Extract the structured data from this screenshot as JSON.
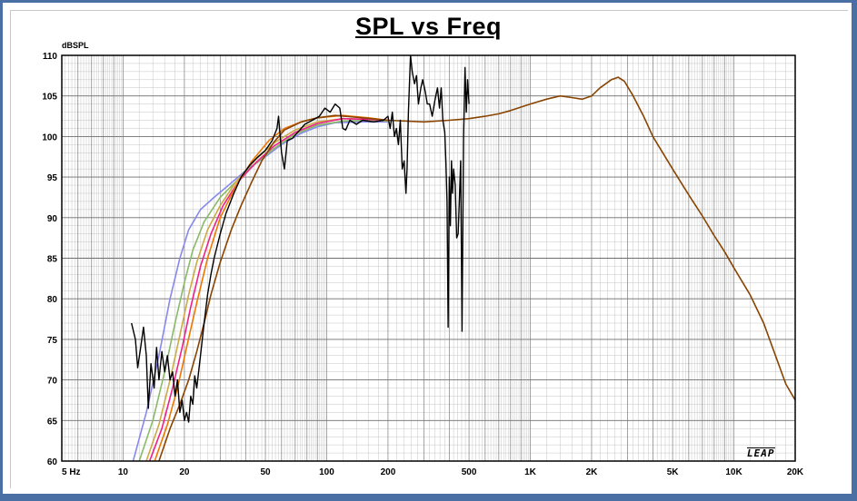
{
  "chart_data": {
    "type": "line",
    "title": "SPL vs Freq",
    "ylabel": "dBSPL",
    "xlabel": "",
    "x_scale": "log",
    "xlim": [
      5,
      20000
    ],
    "ylim": [
      60,
      110
    ],
    "grid": true,
    "y_ticks": [
      "110",
      "105",
      "100",
      "95",
      "90",
      "85",
      "80",
      "75",
      "70",
      "65",
      "60"
    ],
    "x_ticks": [
      {
        "value": 5,
        "label": "5  Hz"
      },
      {
        "value": 10,
        "label": "10"
      },
      {
        "value": 20,
        "label": "20"
      },
      {
        "value": 50,
        "label": "50"
      },
      {
        "value": 100,
        "label": "100"
      },
      {
        "value": 200,
        "label": "200"
      },
      {
        "value": 500,
        "label": "500"
      },
      {
        "value": 1000,
        "label": "1K"
      },
      {
        "value": 2000,
        "label": "2K"
      },
      {
        "value": 5000,
        "label": "5K"
      },
      {
        "value": 10000,
        "label": "10K"
      },
      {
        "value": 20000,
        "label": "20K"
      }
    ],
    "series": [
      {
        "color": "#8888ee",
        "points": [
          [
            11.2,
            60
          ],
          [
            13,
            66
          ],
          [
            15,
            73
          ],
          [
            17,
            80
          ],
          [
            19,
            85
          ],
          [
            21,
            88.5
          ],
          [
            24,
            91
          ],
          [
            28,
            92.5
          ],
          [
            33,
            94
          ],
          [
            40,
            95.8
          ],
          [
            50,
            97.5
          ],
          [
            60,
            99
          ],
          [
            75,
            100.4
          ],
          [
            90,
            101.2
          ],
          [
            110,
            101.7
          ],
          [
            150,
            101.8
          ],
          [
            200,
            101.8
          ]
        ]
      },
      {
        "color": "#88bb66",
        "points": [
          [
            12,
            60
          ],
          [
            14,
            65
          ],
          [
            16,
            71
          ],
          [
            18,
            77
          ],
          [
            20,
            82
          ],
          [
            22,
            86
          ],
          [
            25,
            89.5
          ],
          [
            30,
            92.5
          ],
          [
            36,
            94.5
          ],
          [
            45,
            96.7
          ],
          [
            55,
            98.5
          ],
          [
            70,
            100.3
          ],
          [
            90,
            101.4
          ],
          [
            120,
            101.9
          ],
          [
            160,
            102
          ],
          [
            200,
            101.9
          ]
        ]
      },
      {
        "color": "#ccaa44",
        "points": [
          [
            13,
            60
          ],
          [
            15,
            64.5
          ],
          [
            17,
            70
          ],
          [
            19,
            75.5
          ],
          [
            21,
            80.5
          ],
          [
            23,
            84.5
          ],
          [
            26,
            88.5
          ],
          [
            30,
            91.5
          ],
          [
            36,
            94.5
          ],
          [
            45,
            97.2
          ],
          [
            55,
            99.2
          ],
          [
            70,
            100.8
          ],
          [
            90,
            101.8
          ],
          [
            120,
            102.2
          ],
          [
            160,
            102.1
          ],
          [
            200,
            102
          ]
        ]
      },
      {
        "color": "#ee2288",
        "points": [
          [
            13.5,
            60
          ],
          [
            15.5,
            64
          ],
          [
            17.5,
            69
          ],
          [
            19.5,
            74
          ],
          [
            21.5,
            79
          ],
          [
            24,
            84
          ],
          [
            27,
            88
          ],
          [
            31,
            91.5
          ],
          [
            37,
            94.5
          ],
          [
            45,
            96.8
          ],
          [
            55,
            98.8
          ],
          [
            70,
            100.5
          ],
          [
            90,
            101.6
          ],
          [
            120,
            102.2
          ],
          [
            160,
            102.1
          ],
          [
            200,
            102
          ]
        ]
      },
      {
        "color": "#ee7700",
        "points": [
          [
            14.3,
            60
          ],
          [
            16.5,
            64.5
          ],
          [
            18.5,
            69
          ],
          [
            20.5,
            74
          ],
          [
            23,
            79.5
          ],
          [
            26,
            85
          ],
          [
            30,
            90
          ],
          [
            36,
            94
          ],
          [
            43,
            97
          ],
          [
            52,
            99.5
          ],
          [
            62,
            101
          ],
          [
            75,
            101.8
          ],
          [
            90,
            102.3
          ],
          [
            120,
            102.6
          ],
          [
            160,
            102.3
          ],
          [
            200,
            102
          ]
        ]
      },
      {
        "color": "#884400",
        "points": [
          [
            15,
            60
          ],
          [
            17,
            64
          ],
          [
            19,
            67
          ],
          [
            21,
            70
          ],
          [
            23,
            73.5
          ],
          [
            25,
            77
          ],
          [
            27,
            80.5
          ],
          [
            30,
            84.5
          ],
          [
            34,
            88.5
          ],
          [
            38,
            91.5
          ],
          [
            43,
            94.5
          ],
          [
            48,
            97
          ],
          [
            55,
            99.3
          ],
          [
            62,
            100.8
          ],
          [
            75,
            101.8
          ],
          [
            90,
            102.3
          ],
          [
            110,
            102.6
          ],
          [
            150,
            102.3
          ],
          [
            200,
            102
          ],
          [
            300,
            101.8
          ],
          [
            400,
            102
          ],
          [
            500,
            102.2
          ],
          [
            600,
            102.5
          ],
          [
            700,
            102.8
          ],
          [
            800,
            103.2
          ],
          [
            1000,
            104
          ],
          [
            1200,
            104.6
          ],
          [
            1400,
            105
          ],
          [
            1600,
            104.8
          ],
          [
            1800,
            104.6
          ],
          [
            2000,
            105
          ],
          [
            2200,
            106
          ],
          [
            2500,
            107
          ],
          [
            2700,
            107.3
          ],
          [
            2900,
            106.8
          ],
          [
            3200,
            105
          ],
          [
            3600,
            102.5
          ],
          [
            4000,
            100
          ],
          [
            5000,
            96
          ],
          [
            6000,
            92.8
          ],
          [
            7000,
            90.2
          ],
          [
            8000,
            87.8
          ],
          [
            9000,
            85.8
          ],
          [
            10000,
            83.8
          ],
          [
            12000,
            80.5
          ],
          [
            14000,
            77
          ],
          [
            16000,
            73
          ],
          [
            18000,
            69.5
          ],
          [
            20000,
            67.5
          ],
          [
            22000,
            66.5
          ]
        ]
      },
      {
        "color": "#000000",
        "points": [
          [
            11,
            77
          ],
          [
            11.5,
            75
          ],
          [
            11.8,
            71.5
          ],
          [
            12.2,
            74
          ],
          [
            12.6,
            76.5
          ],
          [
            13,
            73
          ],
          [
            13.3,
            66.5
          ],
          [
            13.7,
            72
          ],
          [
            14.2,
            69
          ],
          [
            14.6,
            74
          ],
          [
            15,
            70
          ],
          [
            15.5,
            73.5
          ],
          [
            16,
            71
          ],
          [
            16.5,
            73
          ],
          [
            17,
            70
          ],
          [
            17.5,
            71
          ],
          [
            18,
            68
          ],
          [
            18.5,
            70
          ],
          [
            19,
            66
          ],
          [
            19.5,
            67.5
          ],
          [
            20,
            65
          ],
          [
            20.5,
            66
          ],
          [
            21,
            64.8
          ],
          [
            21.5,
            68
          ],
          [
            22,
            67
          ],
          [
            22.5,
            70.5
          ],
          [
            23,
            69
          ],
          [
            24,
            73
          ],
          [
            25,
            77
          ],
          [
            26,
            80.5
          ],
          [
            27,
            83
          ],
          [
            28,
            85
          ],
          [
            30,
            88
          ],
          [
            32,
            90.5
          ],
          [
            35,
            93
          ],
          [
            38,
            95
          ],
          [
            42,
            96.5
          ],
          [
            46,
            97.5
          ],
          [
            50,
            98.3
          ],
          [
            54,
            99.5
          ],
          [
            57,
            101
          ],
          [
            58,
            102.5
          ],
          [
            60,
            98
          ],
          [
            62,
            96
          ],
          [
            64,
            99.5
          ],
          [
            68,
            99.8
          ],
          [
            72,
            100.5
          ],
          [
            78,
            101.5
          ],
          [
            85,
            102
          ],
          [
            92,
            102.5
          ],
          [
            98,
            103.5
          ],
          [
            104,
            103
          ],
          [
            110,
            104
          ],
          [
            116,
            103.5
          ],
          [
            120,
            101
          ],
          [
            124,
            100.8
          ],
          [
            130,
            102
          ],
          [
            140,
            101.5
          ],
          [
            150,
            102
          ],
          [
            170,
            101.8
          ],
          [
            190,
            102
          ],
          [
            200,
            102.5
          ],
          [
            205,
            101
          ],
          [
            210,
            103
          ],
          [
            215,
            100
          ],
          [
            220,
            101
          ],
          [
            225,
            99
          ],
          [
            230,
            102
          ],
          [
            235,
            96
          ],
          [
            240,
            97
          ],
          [
            245,
            93
          ],
          [
            248,
            96
          ],
          [
            252,
            103
          ],
          [
            258,
            110
          ],
          [
            263,
            108
          ],
          [
            270,
            106.5
          ],
          [
            276,
            107.5
          ],
          [
            282,
            104
          ],
          [
            290,
            106
          ],
          [
            296,
            107
          ],
          [
            305,
            105.5
          ],
          [
            312,
            104
          ],
          [
            320,
            104
          ],
          [
            330,
            102.5
          ],
          [
            340,
            104.5
          ],
          [
            350,
            106
          ],
          [
            358,
            103.5
          ],
          [
            365,
            106
          ],
          [
            372,
            102
          ],
          [
            380,
            100.5
          ],
          [
            385,
            97
          ],
          [
            390,
            92
          ],
          [
            395,
            76.5
          ],
          [
            400,
            95
          ],
          [
            405,
            89
          ],
          [
            410,
            97
          ],
          [
            415,
            93
          ],
          [
            420,
            96
          ],
          [
            428,
            94
          ],
          [
            435,
            87.5
          ],
          [
            442,
            88
          ],
          [
            448,
            92
          ],
          [
            455,
            97
          ],
          [
            462,
            76
          ],
          [
            470,
            100
          ],
          [
            478,
            108.5
          ],
          [
            485,
            103
          ],
          [
            492,
            107
          ],
          [
            500,
            104
          ]
        ]
      }
    ]
  }
}
